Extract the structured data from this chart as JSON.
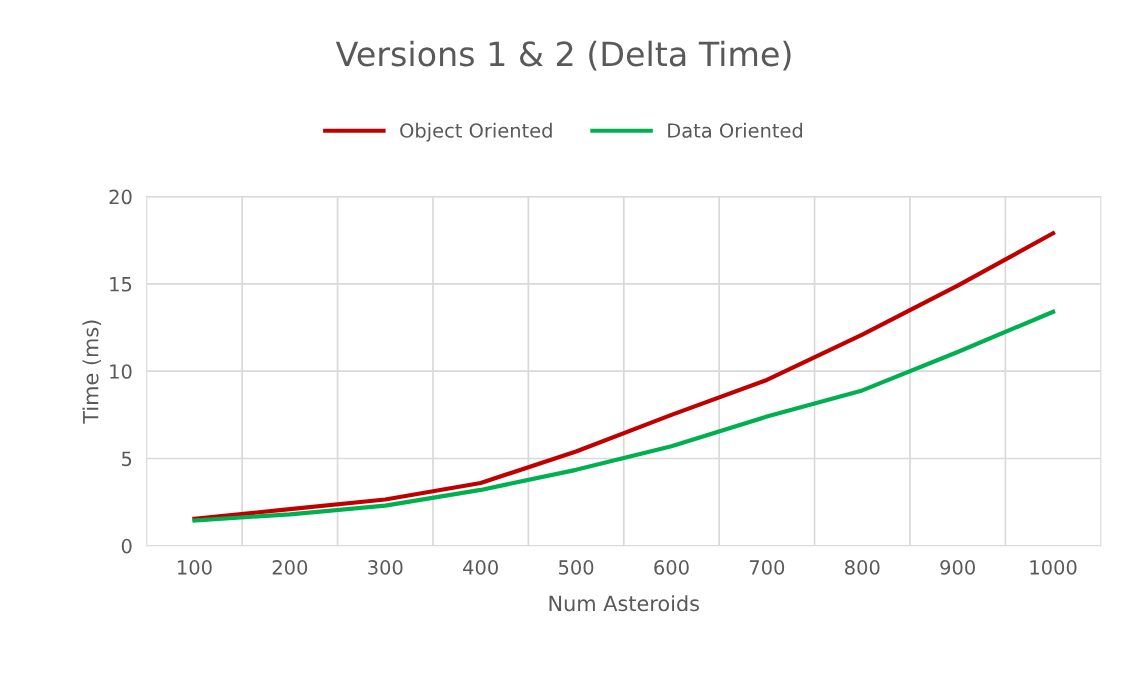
{
  "chart_data": {
    "type": "line",
    "title": "Versions 1 & 2 (Delta Time)",
    "xlabel": "Num Asteroids",
    "ylabel": "Time (ms)",
    "categories": [
      "100",
      "200",
      "300",
      "400",
      "500",
      "600",
      "700",
      "800",
      "900",
      "1000"
    ],
    "series": [
      {
        "name": "Object Oriented",
        "color": "#c00000",
        "values": [
          1.55,
          2.1,
          2.65,
          3.6,
          5.4,
          7.5,
          9.5,
          12.1,
          14.9,
          17.9
        ]
      },
      {
        "name": "Data Oriented",
        "color": "#00b050",
        "values": [
          1.45,
          1.8,
          2.3,
          3.2,
          4.35,
          5.7,
          7.4,
          8.9,
          11.1,
          13.4
        ]
      }
    ],
    "ylim": [
      0,
      20
    ],
    "yticks": [
      0,
      5,
      10,
      15,
      20
    ],
    "grid": true,
    "legend": "top",
    "marker": "none",
    "line_style": "solid"
  }
}
